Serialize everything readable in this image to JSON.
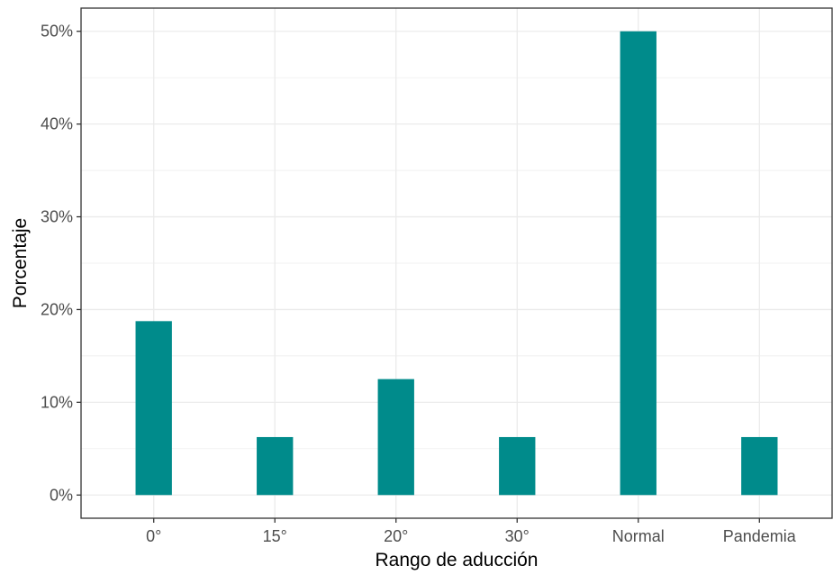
{
  "chart_data": {
    "type": "bar",
    "title": "",
    "xlabel": "Rango de aducción",
    "ylabel": "Porcentaje",
    "categories": [
      "0°",
      "15°",
      "20°",
      "30°",
      "Normal",
      "Pandemia"
    ],
    "values": [
      18.75,
      6.25,
      12.5,
      6.25,
      50,
      6.25
    ],
    "ylim": [
      -2.5,
      52.5
    ],
    "yticks": [
      0,
      10,
      20,
      30,
      40,
      50
    ],
    "ytick_labels": [
      "0%",
      "10%",
      "20%",
      "30%",
      "40%",
      "50%"
    ],
    "grid": true,
    "legend": "none",
    "colors": {
      "bar": "#008B8B",
      "grid": "#EBEBEB",
      "panel_border": "#333333",
      "tick_label": "#4D4D4D"
    }
  }
}
